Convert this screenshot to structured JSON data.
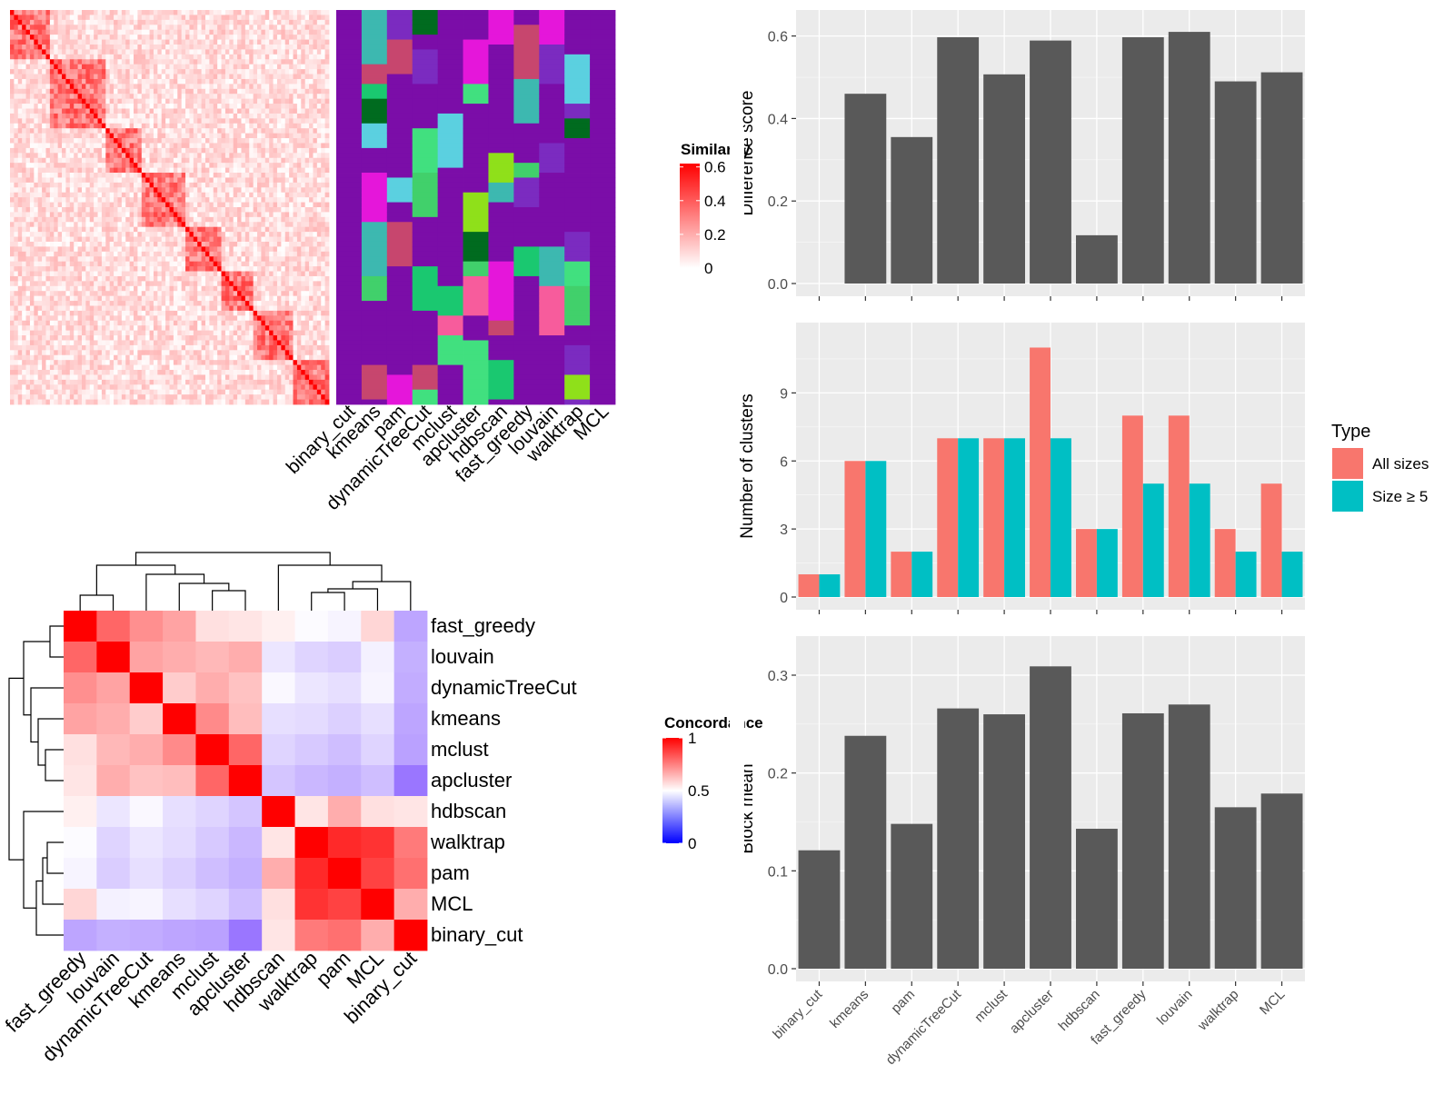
{
  "methods_order": [
    "binary_cut",
    "kmeans",
    "pam",
    "dynamicTreeCut",
    "mclust",
    "apcluster",
    "hdbscan",
    "fast_greedy",
    "louvain",
    "walktrap",
    "MCL"
  ],
  "colors": {
    "bar_dark": "#595959",
    "panel_bg": "#EBEBEB",
    "grid_major": "#FFFFFF",
    "all_sizes": "#F8766D",
    "size_ge5": "#00BFC4",
    "heat_high": "#FF0000",
    "heat_low_sim": "#FFFFFF",
    "heat_mid_conc": "#FFFFFF",
    "heat_low_conc": "#0000FF",
    "cluster_purple": "#7B0DA8",
    "cluster_palette": [
      "#7B0DA8",
      "#41E07F",
      "#3DB8B0",
      "#8FE01A",
      "#006B1F",
      "#E516DA",
      "#F75C9C",
      "#41D06B",
      "#5BD0E0",
      "#C7466E",
      "#7B2BC0",
      "#1AC870"
    ]
  },
  "similarity_legend": {
    "title": "Similarity",
    "ticks": [
      "0.6",
      "0.4",
      "0.2",
      "0"
    ]
  },
  "concordance_legend": {
    "title": "Concordance",
    "ticks": [
      "1",
      "0.5",
      "0"
    ]
  },
  "similarity_heatmap": {
    "n_terms": 80,
    "block_sizes": [
      10,
      14,
      9,
      11,
      9,
      8,
      10,
      9
    ]
  },
  "cluster_assignment_columns": [
    "binary_cut",
    "kmeans",
    "pam",
    "dynamicTreeCut",
    "mclust",
    "apcluster",
    "hdbscan",
    "fast_greedy",
    "louvain",
    "walktrap",
    "MCL"
  ],
  "concordance": {
    "order": [
      "fast_greedy",
      "louvain",
      "dynamicTreeCut",
      "kmeans",
      "mclust",
      "apcluster",
      "hdbscan",
      "walktrap",
      "pam",
      "MCL",
      "binary_cut"
    ],
    "matrix": [
      [
        1.0,
        0.8,
        0.72,
        0.68,
        0.56,
        0.55,
        0.53,
        0.49,
        0.47,
        0.58,
        0.25
      ],
      [
        0.8,
        1.0,
        0.68,
        0.66,
        0.64,
        0.66,
        0.43,
        0.38,
        0.36,
        0.46,
        0.28
      ],
      [
        0.72,
        0.68,
        1.0,
        0.6,
        0.66,
        0.62,
        0.48,
        0.43,
        0.41,
        0.47,
        0.27
      ],
      [
        0.68,
        0.66,
        0.6,
        1.0,
        0.73,
        0.63,
        0.41,
        0.4,
        0.37,
        0.41,
        0.25
      ],
      [
        0.56,
        0.64,
        0.66,
        0.73,
        1.0,
        0.8,
        0.38,
        0.35,
        0.32,
        0.38,
        0.24
      ],
      [
        0.55,
        0.66,
        0.62,
        0.63,
        0.8,
        1.0,
        0.34,
        0.3,
        0.28,
        0.32,
        0.12
      ],
      [
        0.53,
        0.43,
        0.48,
        0.41,
        0.38,
        0.34,
        1.0,
        0.55,
        0.66,
        0.56,
        0.55
      ],
      [
        0.49,
        0.38,
        0.43,
        0.4,
        0.35,
        0.3,
        0.55,
        1.0,
        0.92,
        0.9,
        0.76
      ],
      [
        0.47,
        0.36,
        0.41,
        0.37,
        0.32,
        0.28,
        0.66,
        0.92,
        1.0,
        0.87,
        0.78
      ],
      [
        0.58,
        0.46,
        0.47,
        0.41,
        0.38,
        0.32,
        0.56,
        0.9,
        0.87,
        1.0,
        0.66
      ],
      [
        0.25,
        0.28,
        0.27,
        0.25,
        0.24,
        0.12,
        0.55,
        0.76,
        0.78,
        0.66,
        1.0
      ]
    ]
  },
  "chart_data": [
    {
      "type": "bar",
      "ylabel": "Difference score",
      "categories": [
        "binary_cut",
        "kmeans",
        "pam",
        "dynamicTreeCut",
        "mclust",
        "apcluster",
        "hdbscan",
        "fast_greedy",
        "louvain",
        "walktrap",
        "MCL"
      ],
      "values": [
        0.0,
        0.46,
        0.355,
        0.597,
        0.507,
        0.589,
        0.117,
        0.597,
        0.61,
        0.49,
        0.512
      ],
      "ylim": [
        0,
        0.63
      ],
      "yticks": [
        "0.0",
        "0.2",
        "0.4",
        "0.6"
      ],
      "ytick_values": [
        0,
        0.2,
        0.4,
        0.6
      ]
    },
    {
      "type": "bar",
      "ylabel": "Number of clusters",
      "categories": [
        "binary_cut",
        "kmeans",
        "pam",
        "dynamicTreeCut",
        "mclust",
        "apcluster",
        "hdbscan",
        "fast_greedy",
        "louvain",
        "walktrap",
        "MCL"
      ],
      "series": [
        {
          "name": "All sizes",
          "values": [
            1,
            6,
            2,
            7,
            7,
            11,
            3,
            8,
            8,
            3,
            5
          ]
        },
        {
          "name": "Size ≥ 5",
          "values": [
            1,
            6,
            2,
            7,
            7,
            7,
            3,
            5,
            5,
            2,
            2
          ]
        }
      ],
      "ylim": [
        0,
        11.5
      ],
      "yticks": [
        "0",
        "3",
        "6",
        "9"
      ],
      "ytick_values": [
        0,
        3,
        6,
        9
      ],
      "legend": {
        "title": "Type",
        "placement": "right"
      }
    },
    {
      "type": "bar",
      "ylabel": "Block mean",
      "categories": [
        "binary_cut",
        "kmeans",
        "pam",
        "dynamicTreeCut",
        "mclust",
        "apcluster",
        "hdbscan",
        "fast_greedy",
        "louvain",
        "walktrap",
        "MCL"
      ],
      "values": [
        0.121,
        0.238,
        0.148,
        0.266,
        0.26,
        0.309,
        0.143,
        0.261,
        0.27,
        0.165,
        0.179
      ],
      "ylim": [
        0,
        0.326
      ],
      "yticks": [
        "0.0",
        "0.1",
        "0.2",
        "0.3"
      ],
      "ytick_values": [
        0,
        0.1,
        0.2,
        0.3
      ]
    }
  ]
}
